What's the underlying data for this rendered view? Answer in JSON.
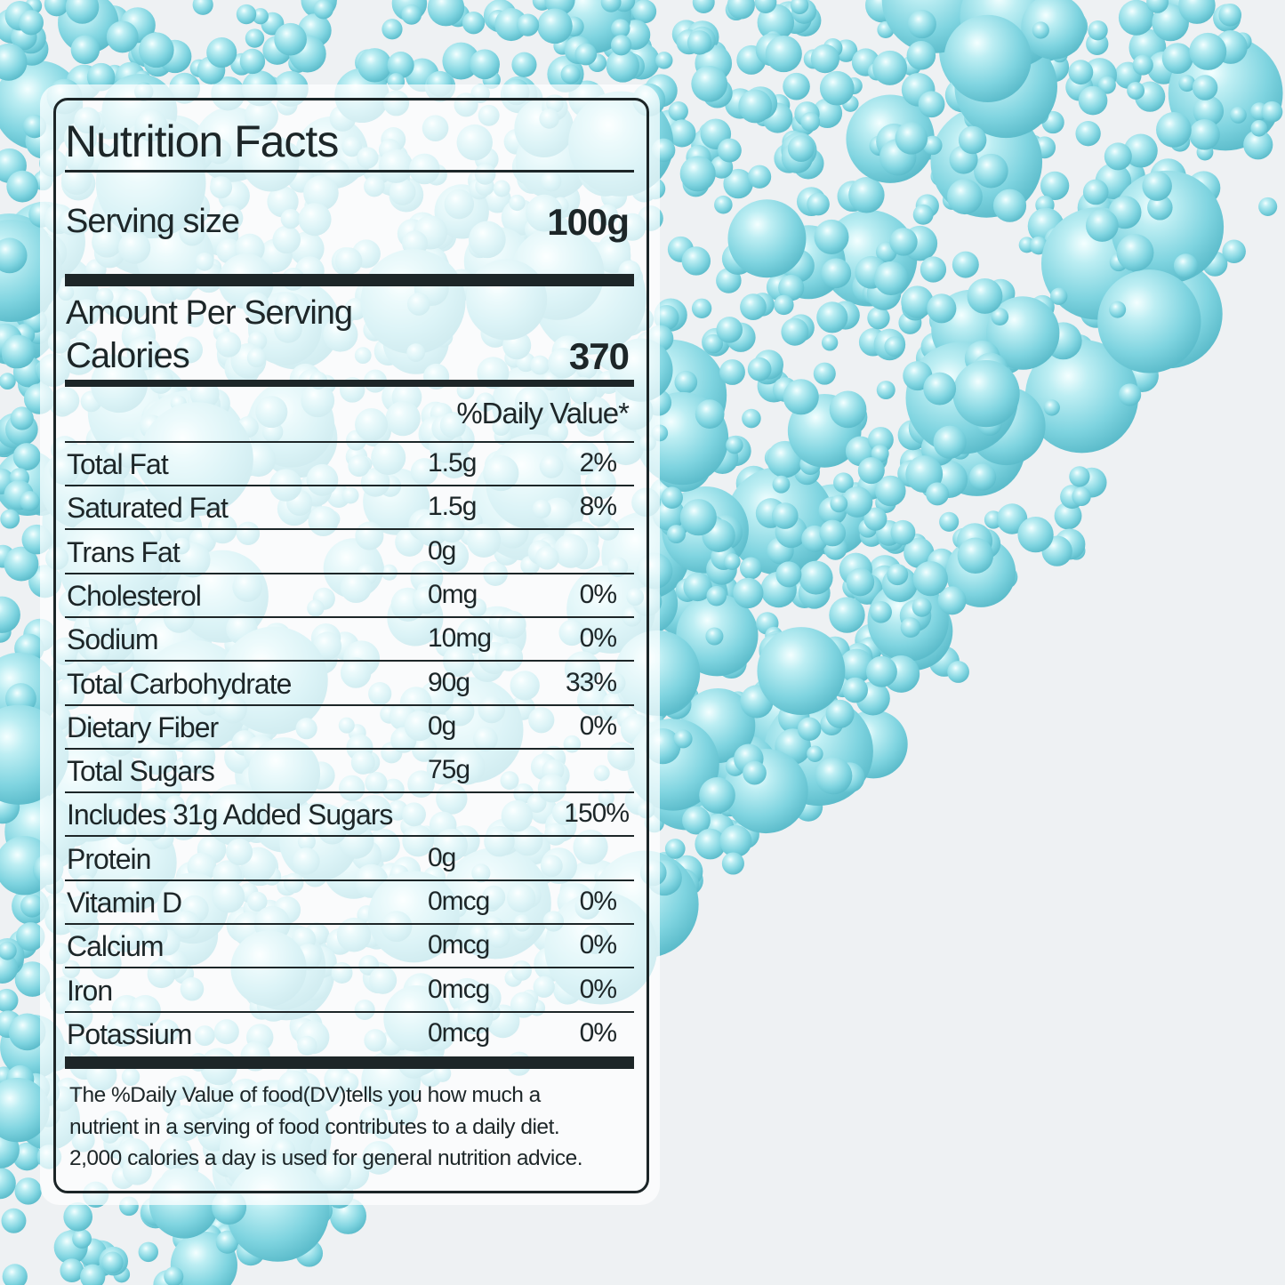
{
  "colors": {
    "pearl": "#7fd4e0",
    "text": "#1d2628",
    "background": "#eef1f3"
  },
  "label": {
    "title": "Nutrition Facts",
    "serving_label": "Serving size",
    "serving_value": "100g",
    "amount_per_serving": "Amount Per Serving",
    "calories_label": "Calories",
    "calories_value": "370",
    "daily_value_header": "%Daily Value*",
    "rows": [
      {
        "name": "Total Fat",
        "amount": "1.5g",
        "dv": "2%"
      },
      {
        "name": "Saturated Fat",
        "amount": "1.5g",
        "dv": "8%"
      },
      {
        "name": "Trans Fat",
        "amount": "0g",
        "dv": ""
      },
      {
        "name": "Cholesterol",
        "amount": "0mg",
        "dv": "0%"
      },
      {
        "name": "Sodium",
        "amount": "10mg",
        "dv": "0%"
      },
      {
        "name": "Total Carbohydrate",
        "amount": "90g",
        "dv": "33%"
      },
      {
        "name": "Dietary Fiber",
        "amount": "0g",
        "dv": "0%"
      },
      {
        "name": "Total Sugars",
        "amount": "75g",
        "dv": ""
      },
      {
        "name": "Includes 31g Added Sugars",
        "amount": "",
        "dv": "150%"
      },
      {
        "name": "Protein",
        "amount": "0g",
        "dv": ""
      },
      {
        "name": "Vitamin D",
        "amount": "0mcg",
        "dv": "0%"
      },
      {
        "name": "Calcium",
        "amount": "0mcg",
        "dv": "0%"
      },
      {
        "name": "Iron",
        "amount": "0mcg",
        "dv": "0%"
      },
      {
        "name": "Potassium",
        "amount": "0mcg",
        "dv": "0%"
      }
    ],
    "footnote": [
      "The %Daily Value of food(DV)tells you how much a",
      "nutrient in a serving of food contributes to a daily diet.",
      "2,000 calories a day is used for general nutrition advice."
    ]
  }
}
